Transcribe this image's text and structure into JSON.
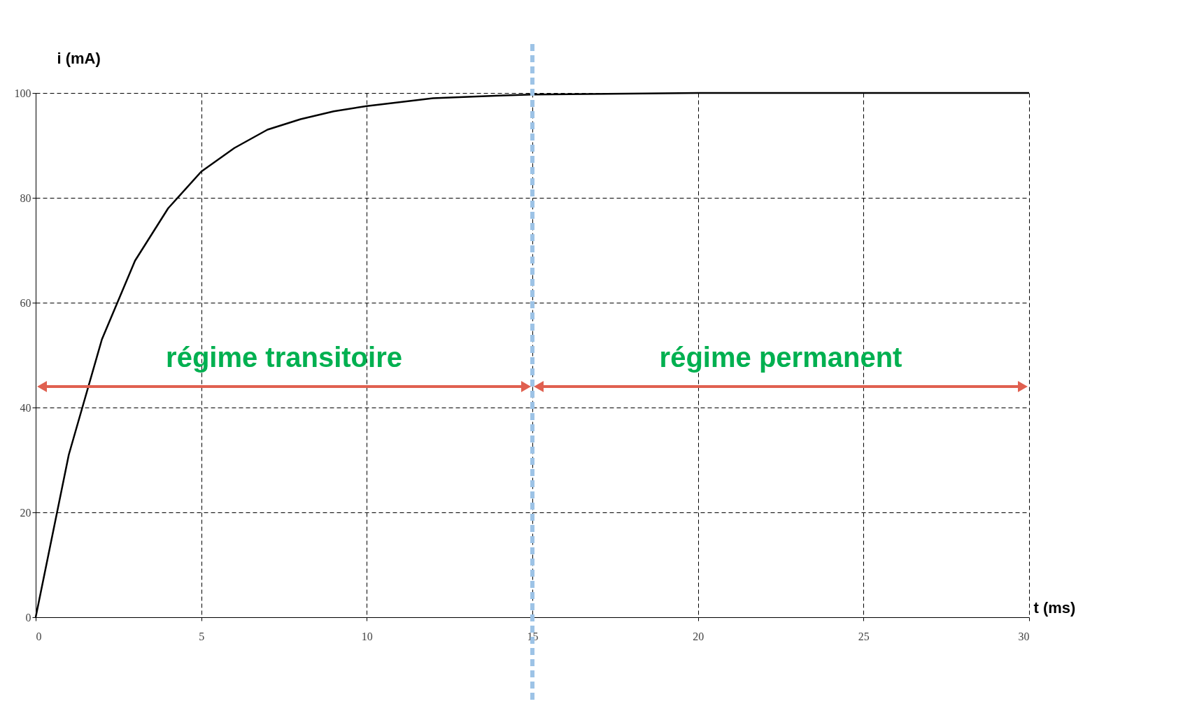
{
  "chart_data": {
    "type": "line",
    "xlabel": "t (ms)",
    "ylabel": "i (mA)",
    "x": [
      0,
      1,
      2,
      3,
      4,
      5,
      6,
      7,
      8,
      9,
      10,
      12,
      14,
      15,
      20,
      25,
      30
    ],
    "series": [
      {
        "color": "#000000",
        "values": [
          0,
          31,
          53,
          68,
          78,
          85,
          89.5,
          93,
          95,
          96.5,
          97.5,
          99,
          99.5,
          99.7,
          100,
          100,
          100
        ]
      }
    ],
    "xlim": [
      0,
      30
    ],
    "ylim": [
      0,
      100
    ],
    "xticks": [
      0,
      5,
      10,
      15,
      20,
      25,
      30
    ],
    "yticks": [
      0,
      20,
      40,
      60,
      80,
      100
    ],
    "grid": true,
    "marker": "none",
    "line_style": "solid",
    "ref_lines": [
      {
        "axis": "x",
        "value": 15,
        "color": "#9dc3e6",
        "line_style": "dashed"
      }
    ],
    "annotations": [
      "régime transitoire",
      "régime permanent"
    ]
  }
}
